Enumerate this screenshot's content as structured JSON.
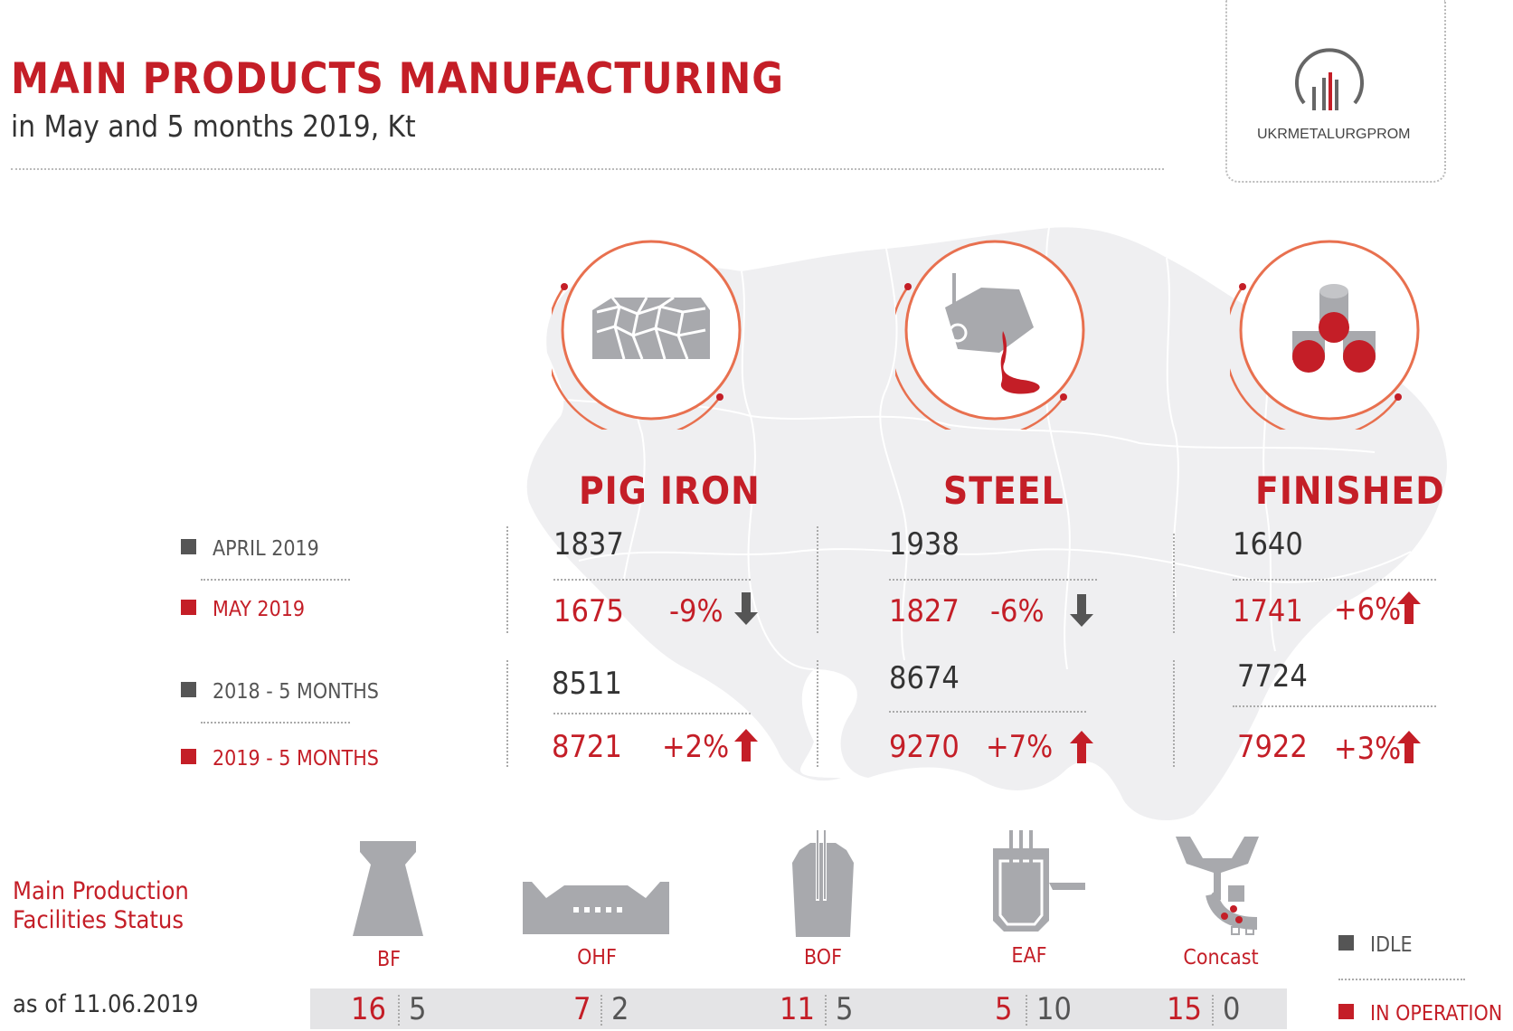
{
  "header": {
    "title": "MAIN PRODUCTS MANUFACTURING",
    "subtitle": "in May and 5 months 2019, Kt",
    "logo_text": "UKRMETALURGPROM"
  },
  "legend_periods": {
    "april_2019": "APRIL 2019",
    "may_2019": "MAY 2019",
    "y2018_5m": "2018 - 5 MONTHS",
    "y2019_5m": "2019 - 5 MONTHS"
  },
  "products": [
    {
      "name": "PIG IRON",
      "april": "1837",
      "may": "1675",
      "monthly_change": "-9%",
      "monthly_dir": "down",
      "y2018": "8511",
      "y2019": "8721",
      "ytd_change": "+2%",
      "ytd_dir": "up"
    },
    {
      "name": "STEEL",
      "april": "1938",
      "may": "1827",
      "monthly_change": "-6%",
      "monthly_dir": "down",
      "y2018": "8674",
      "y2019": "9270",
      "ytd_change": "+7%",
      "ytd_dir": "up"
    },
    {
      "name": "FINISHED",
      "april": "1640",
      "may": "1741",
      "monthly_change": "+6%",
      "monthly_dir": "up",
      "y2018": "7724",
      "y2019": "7922",
      "ytd_change": "+3%",
      "ytd_dir": "up"
    }
  ],
  "facilities": {
    "section_title_line1": "Main Production",
    "section_title_line2": "Facilities Status",
    "as_of": "as of 11.06.2019",
    "items": [
      {
        "label": "BF",
        "in_operation": "16",
        "idle": "5"
      },
      {
        "label": "OHF",
        "in_operation": "7",
        "idle": "2"
      },
      {
        "label": "BOF",
        "in_operation": "11",
        "idle": "5"
      },
      {
        "label": "EAF",
        "in_operation": "5",
        "idle": "10"
      },
      {
        "label": "Concast",
        "in_operation": "15",
        "idle": "0"
      }
    ],
    "legend_idle": "IDLE",
    "legend_operation": "IN OPERATION"
  },
  "colors": {
    "accent": "#c41e27",
    "dark": "#555555",
    "icon_grey": "#a8a9ad",
    "ring": "#e8704f",
    "map": "#efeff1"
  }
}
